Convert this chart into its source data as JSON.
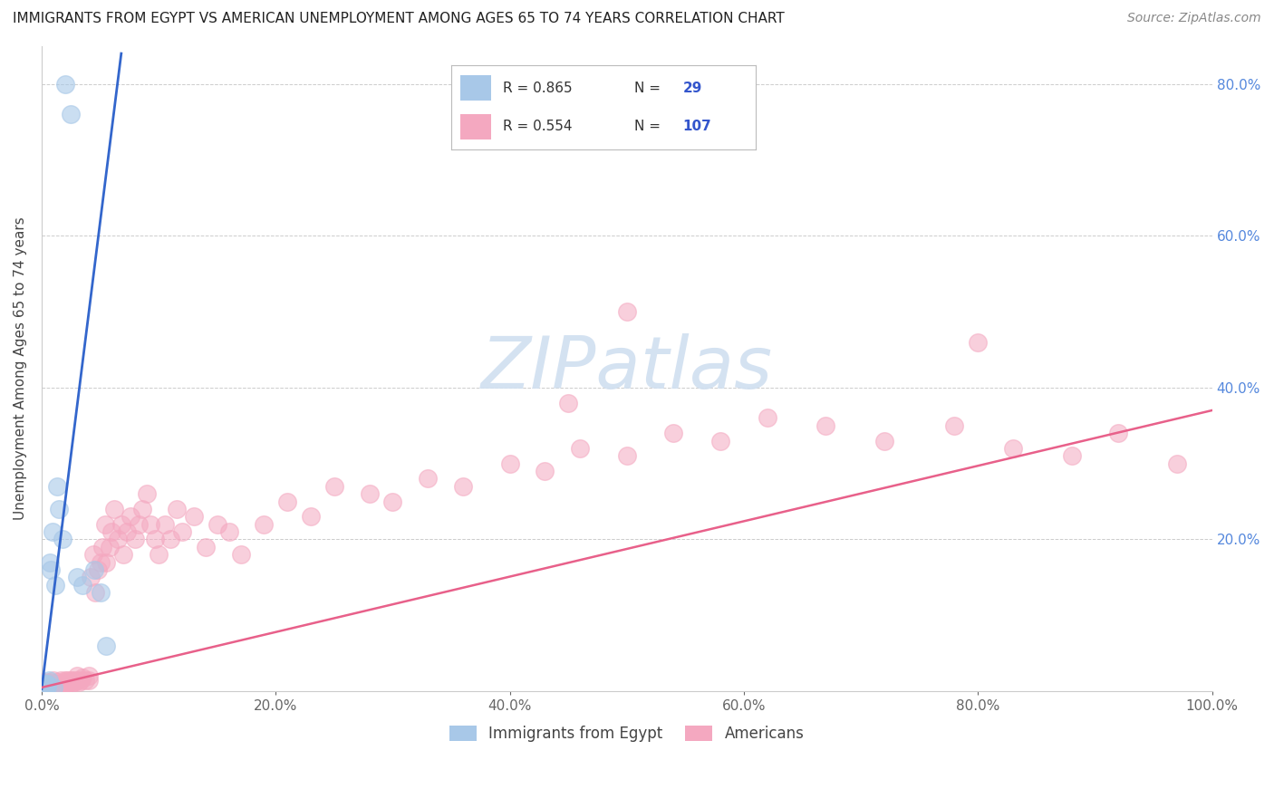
{
  "title": "IMMIGRANTS FROM EGYPT VS AMERICAN UNEMPLOYMENT AMONG AGES 65 TO 74 YEARS CORRELATION CHART",
  "source": "Source: ZipAtlas.com",
  "ylabel": "Unemployment Among Ages 65 to 74 years",
  "xlim": [
    0.0,
    1.0
  ],
  "ylim": [
    0.0,
    0.85
  ],
  "xtick_positions": [
    0.0,
    0.2,
    0.4,
    0.6,
    0.8,
    1.0
  ],
  "xtick_labels": [
    "0.0%",
    "20.0%",
    "40.0%",
    "60.0%",
    "80.0%",
    "100.0%"
  ],
  "ytick_positions": [
    0.0,
    0.2,
    0.4,
    0.6,
    0.8
  ],
  "ytick_labels_right": [
    "",
    "20.0%",
    "40.0%",
    "60.0%",
    "80.0%"
  ],
  "color_blue": "#a8c8e8",
  "color_pink": "#f4a8c0",
  "color_blue_line": "#3366cc",
  "color_pink_line": "#e8608a",
  "color_grid": "#cccccc",
  "watermark_color": "#d0dff0",
  "blue_x": [
    0.0,
    0.0,
    0.001,
    0.001,
    0.0015,
    0.002,
    0.002,
    0.003,
    0.003,
    0.004,
    0.004,
    0.005,
    0.005,
    0.006,
    0.007,
    0.008,
    0.009,
    0.01,
    0.012,
    0.013,
    0.015,
    0.018,
    0.02,
    0.025,
    0.03,
    0.035,
    0.045,
    0.05,
    0.055
  ],
  "blue_y": [
    0.005,
    0.01,
    0.005,
    0.008,
    0.01,
    0.005,
    0.008,
    0.008,
    0.01,
    0.005,
    0.01,
    0.005,
    0.01,
    0.015,
    0.17,
    0.16,
    0.21,
    0.005,
    0.14,
    0.27,
    0.24,
    0.2,
    0.8,
    0.76,
    0.15,
    0.14,
    0.16,
    0.13,
    0.06
  ],
  "blue_line_x": [
    0.0,
    0.068
  ],
  "blue_line_y": [
    0.003,
    0.84
  ],
  "pink_line_x": [
    0.0,
    1.0
  ],
  "pink_line_y": [
    0.005,
    0.37
  ],
  "pink_x": [
    0.0,
    0.0,
    0.0,
    0.001,
    0.001,
    0.001,
    0.002,
    0.002,
    0.002,
    0.003,
    0.003,
    0.004,
    0.004,
    0.005,
    0.005,
    0.005,
    0.006,
    0.007,
    0.007,
    0.008,
    0.008,
    0.009,
    0.01,
    0.01,
    0.01,
    0.012,
    0.013,
    0.014,
    0.015,
    0.016,
    0.016,
    0.018,
    0.019,
    0.02,
    0.02,
    0.022,
    0.022,
    0.024,
    0.025,
    0.025,
    0.027,
    0.028,
    0.03,
    0.03,
    0.032,
    0.033,
    0.035,
    0.037,
    0.04,
    0.04,
    0.042,
    0.044,
    0.046,
    0.048,
    0.05,
    0.052,
    0.054,
    0.055,
    0.058,
    0.06,
    0.062,
    0.065,
    0.068,
    0.07,
    0.073,
    0.076,
    0.08,
    0.083,
    0.086,
    0.09,
    0.093,
    0.097,
    0.1,
    0.105,
    0.11,
    0.115,
    0.12,
    0.13,
    0.14,
    0.15,
    0.16,
    0.17,
    0.19,
    0.21,
    0.23,
    0.25,
    0.28,
    0.3,
    0.33,
    0.36,
    0.4,
    0.43,
    0.46,
    0.5,
    0.54,
    0.58,
    0.62,
    0.67,
    0.72,
    0.78,
    0.83,
    0.88,
    0.92,
    0.97,
    0.5,
    0.8,
    0.45
  ],
  "pink_y": [
    0.005,
    0.008,
    0.01,
    0.005,
    0.008,
    0.012,
    0.005,
    0.008,
    0.01,
    0.005,
    0.01,
    0.008,
    0.01,
    0.005,
    0.008,
    0.012,
    0.008,
    0.005,
    0.01,
    0.008,
    0.012,
    0.008,
    0.005,
    0.01,
    0.015,
    0.01,
    0.012,
    0.008,
    0.01,
    0.015,
    0.008,
    0.01,
    0.012,
    0.01,
    0.015,
    0.01,
    0.015,
    0.012,
    0.015,
    0.01,
    0.015,
    0.012,
    0.015,
    0.02,
    0.012,
    0.015,
    0.018,
    0.015,
    0.02,
    0.015,
    0.15,
    0.18,
    0.13,
    0.16,
    0.17,
    0.19,
    0.22,
    0.17,
    0.19,
    0.21,
    0.24,
    0.2,
    0.22,
    0.18,
    0.21,
    0.23,
    0.2,
    0.22,
    0.24,
    0.26,
    0.22,
    0.2,
    0.18,
    0.22,
    0.2,
    0.24,
    0.21,
    0.23,
    0.19,
    0.22,
    0.21,
    0.18,
    0.22,
    0.25,
    0.23,
    0.27,
    0.26,
    0.25,
    0.28,
    0.27,
    0.3,
    0.29,
    0.32,
    0.31,
    0.34,
    0.33,
    0.36,
    0.35,
    0.33,
    0.35,
    0.32,
    0.31,
    0.34,
    0.3,
    0.5,
    0.46,
    0.38
  ]
}
